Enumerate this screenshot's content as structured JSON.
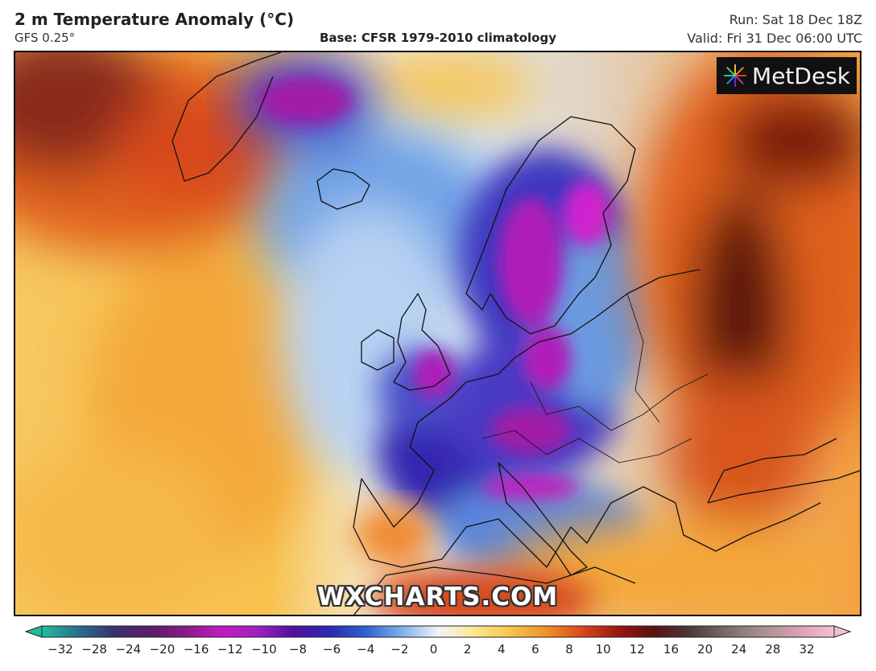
{
  "header": {
    "title": "2 m Temperature Anomaly (°C)",
    "model": "GFS 0.25°",
    "base": "Base: CFSR 1979-2010 climatology",
    "run": "Run: Sat 18 Dec 18Z",
    "valid": "Valid: Fri 31 Dec 06:00 UTC"
  },
  "logo": {
    "text": "MetDesk",
    "icon": "metdesk-burst-icon"
  },
  "watermark": "WXCHARTS.COM",
  "colorbar": {
    "ticks": [
      "−32",
      "−28",
      "−24",
      "−20",
      "−16",
      "−12",
      "−10",
      "−8",
      "−6",
      "−4",
      "−2",
      "0",
      "2",
      "4",
      "6",
      "8",
      "10",
      "12",
      "16",
      "20",
      "24",
      "28",
      "32"
    ],
    "colors": [
      "#1fbf9a",
      "#2a6f8c",
      "#3a3170",
      "#5a1c6a",
      "#8a1a8a",
      "#c01cc0",
      "#a020c0",
      "#5010a0",
      "#2a2ab0",
      "#2e63d0",
      "#7fb0e8",
      "#f0f4fa",
      "#fae890",
      "#f7c64a",
      "#f0902c",
      "#d9481c",
      "#9a1810",
      "#5a1010",
      "#4a3a3a",
      "#7a6a6a",
      "#a89090",
      "#d8a0b0",
      "#f6c0d4"
    ]
  },
  "map": {
    "description_colors": {
      "cold": "#4020b0",
      "very_cold": "#c020c0",
      "cool": "#8ab8ee",
      "neutral": "#f4f6f8",
      "warm": "#f6c050",
      "hot": "#e06020",
      "very_hot": "#7a1a10"
    }
  }
}
